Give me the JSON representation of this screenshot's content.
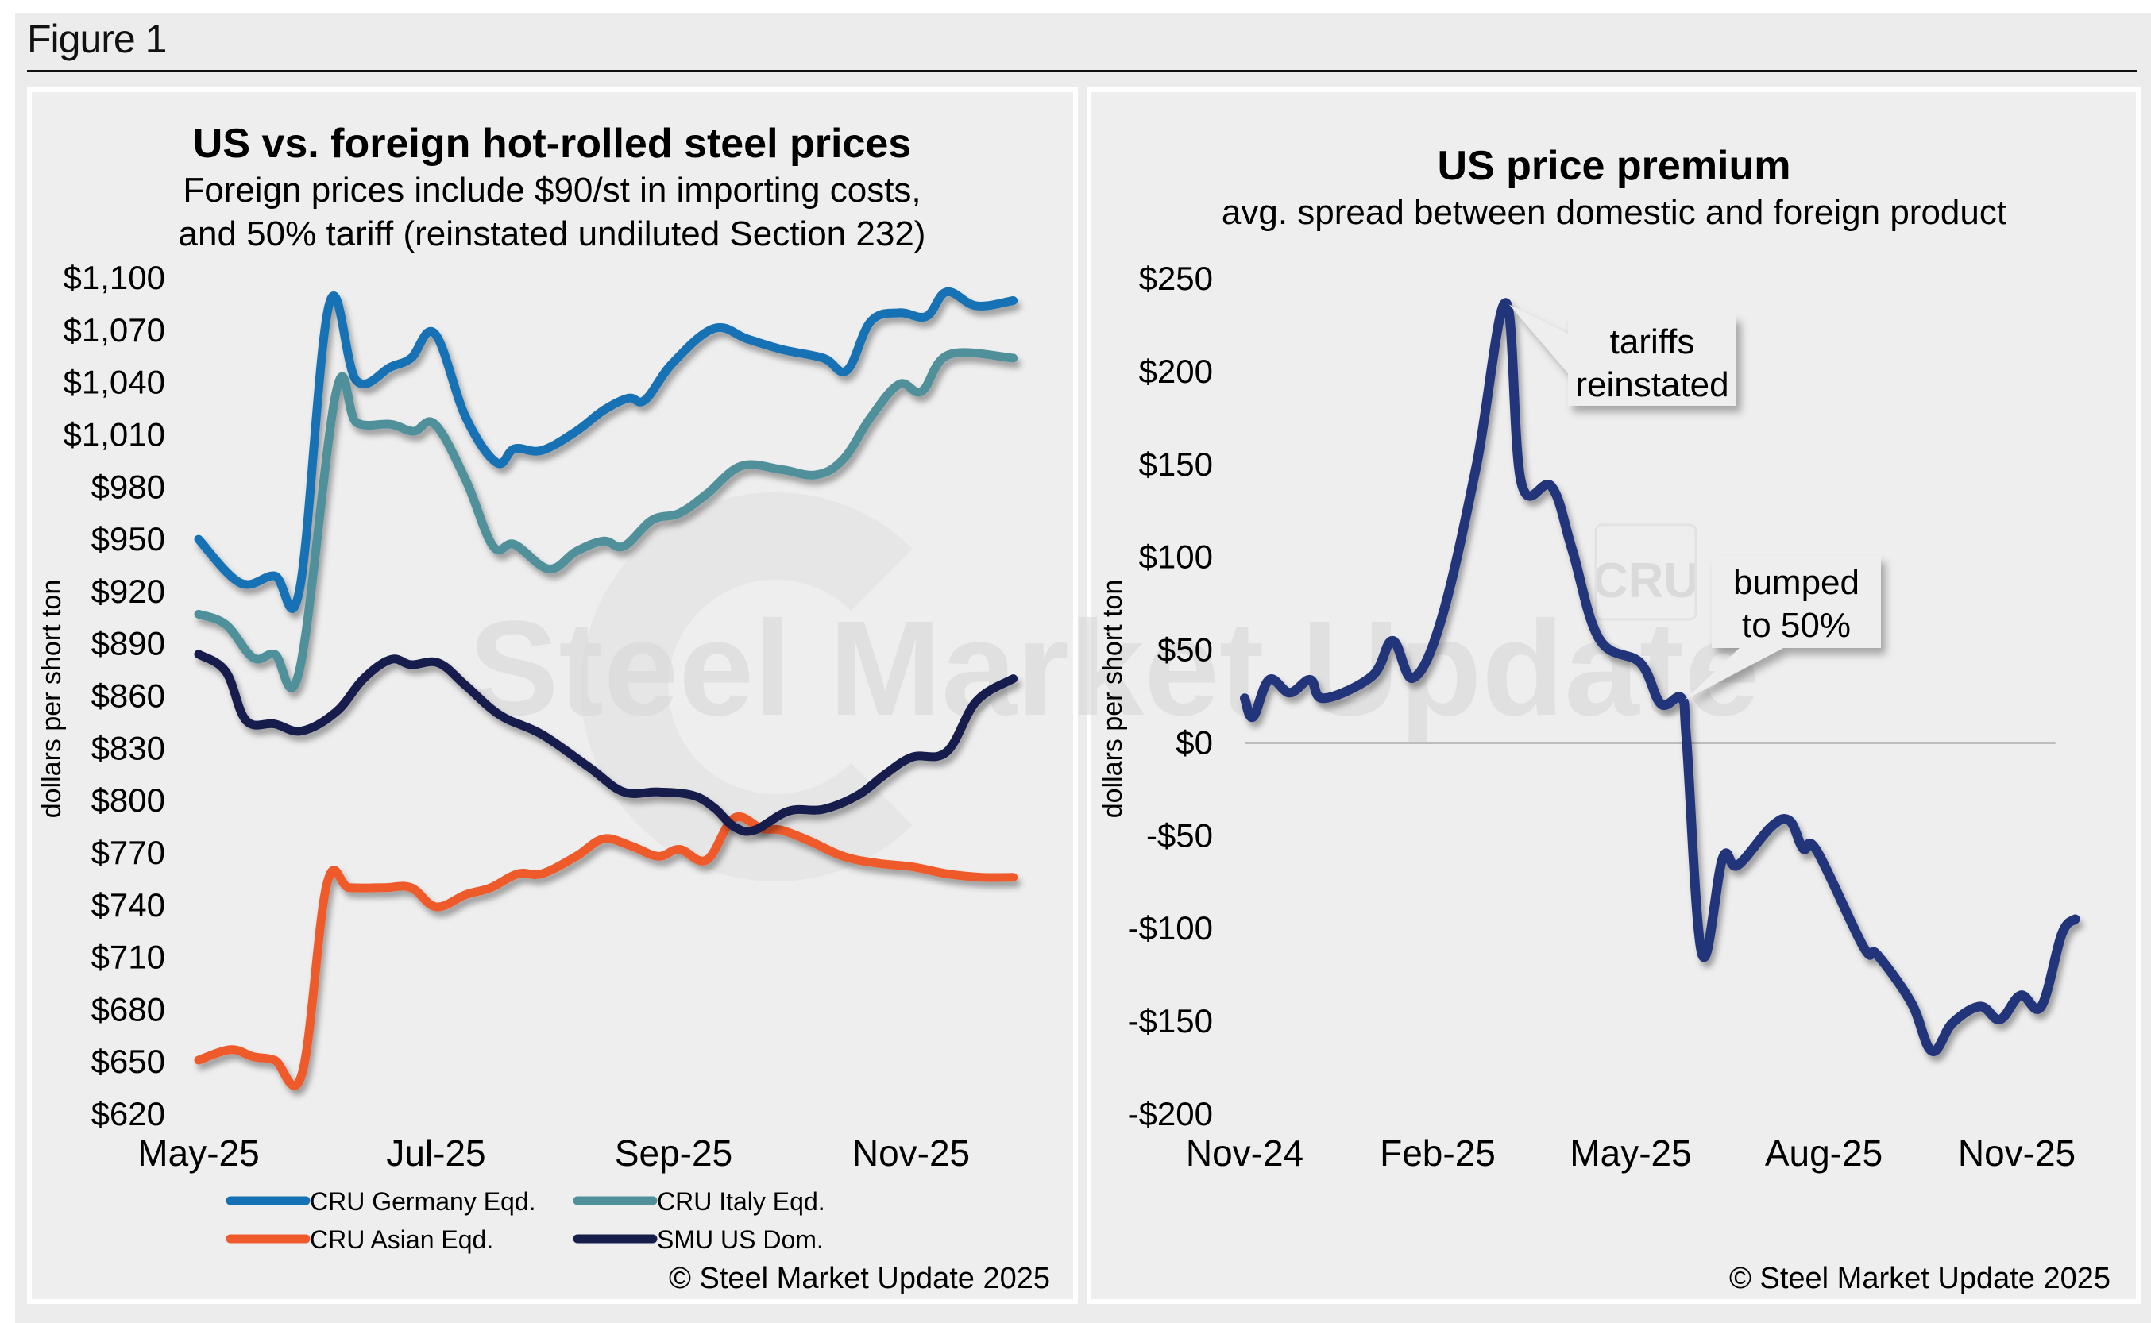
{
  "figure": {
    "label": "Figure 1"
  },
  "chart_data": [
    {
      "id": "left",
      "type": "line",
      "title": "US vs. foreign hot-rolled steel prices",
      "subtitle_lines": [
        "Foreign prices include $90/st in importing costs,",
        "and 50% tariff (reinstated undiluted Section 232)"
      ],
      "xlabel": "",
      "ylabel": "dollars per short ton",
      "ylim": [
        620,
        1100
      ],
      "yticks": [
        1100,
        1070,
        1040,
        1010,
        980,
        950,
        920,
        890,
        860,
        830,
        800,
        770,
        740,
        710,
        680,
        650,
        620
      ],
      "ytick_labels": [
        "$1,100",
        "$1,070",
        "$1,040",
        "$1,010",
        "$980",
        "$950",
        "$920",
        "$890",
        "$860",
        "$830",
        "$800",
        "$770",
        "$740",
        "$710",
        "$680",
        "$650",
        "$620"
      ],
      "x_unit": "months since May-25",
      "xticks": [
        0,
        2,
        4,
        6
      ],
      "xtick_labels": [
        "May-25",
        "Jul-25",
        "Sep-25",
        "Nov-25"
      ],
      "grid": false,
      "legend": "bottom",
      "series": [
        {
          "name": "CRU Germany Eqd.",
          "color": "#1472b4",
          "x": [
            0,
            0.35,
            0.64,
            0.85,
            1.1,
            1.33,
            1.62,
            1.79,
            1.99,
            2.25,
            2.51,
            2.66,
            2.89,
            3.18,
            3.41,
            3.62,
            3.76,
            3.99,
            4.34,
            4.62,
            4.91,
            5.26,
            5.46,
            5.66,
            5.9,
            6.13,
            6.3,
            6.55,
            6.86
          ],
          "y": [
            950,
            925,
            929,
            921,
            1085,
            1041,
            1049,
            1054,
            1068,
            1020,
            994,
            1002,
            1001,
            1012,
            1024,
            1031,
            1030,
            1051,
            1071,
            1065,
            1059,
            1054,
            1047,
            1075,
            1080,
            1078,
            1092,
            1084,
            1087
          ]
        },
        {
          "name": "CRU Italy Eqd.",
          "color": "#50909a",
          "x": [
            0,
            0.23,
            0.46,
            0.64,
            0.85,
            1.16,
            1.33,
            1.62,
            1.81,
            1.99,
            2.25,
            2.48,
            2.66,
            2.95,
            3.18,
            3.41,
            3.58,
            3.82,
            4.05,
            4.28,
            4.57,
            4.91,
            5.2,
            5.43,
            5.66,
            5.9,
            6.09,
            6.32,
            6.86
          ],
          "y": [
            907,
            901,
            882,
            884,
            875,
            1035,
            1017,
            1016,
            1012,
            1016,
            984,
            946,
            947,
            933,
            943,
            949,
            946,
            961,
            965,
            976,
            992,
            990,
            987,
            996,
            1020,
            1039,
            1035,
            1056,
            1054
          ]
        },
        {
          "name": "CRU Asian Eqd.",
          "color": "#ee5a2c",
          "x": [
            0,
            0.27,
            0.46,
            0.64,
            0.87,
            1.08,
            1.27,
            1.56,
            1.79,
            2.0,
            2.25,
            2.46,
            2.69,
            2.89,
            3.18,
            3.41,
            3.64,
            3.87,
            4.05,
            4.28,
            4.51,
            4.74,
            4.91,
            5.14,
            5.43,
            5.72,
            6.01,
            6.3,
            6.59,
            6.86
          ],
          "y": [
            651,
            657,
            653,
            651,
            643,
            752,
            750,
            750,
            750,
            739,
            746,
            750,
            758,
            758,
            768,
            778,
            774,
            768,
            772,
            766,
            790,
            784,
            783,
            777,
            768,
            764,
            762,
            758,
            756,
            756
          ]
        },
        {
          "name": "SMU US Dom.",
          "color": "#171d4b",
          "x": [
            0,
            0.23,
            0.4,
            0.64,
            0.87,
            1.16,
            1.39,
            1.62,
            1.79,
            2.02,
            2.25,
            2.54,
            2.89,
            3.29,
            3.58,
            3.87,
            4.16,
            4.34,
            4.51,
            4.68,
            4.97,
            5.26,
            5.55,
            5.78,
            6.01,
            6.3,
            6.55,
            6.86
          ],
          "y": [
            884,
            874,
            846,
            844,
            840,
            851,
            870,
            881,
            878,
            879,
            866,
            849,
            838,
            819,
            805,
            805,
            803,
            796,
            785,
            783,
            794,
            795,
            803,
            815,
            825,
            828,
            857,
            870
          ]
        }
      ],
      "watermark": "Steel Market Update",
      "copyright": "© Steel Market Update 2025"
    },
    {
      "id": "right",
      "type": "line",
      "title": "US price premium",
      "subtitle_lines": [
        "avg. spread between domestic and foreign product"
      ],
      "xlabel": "",
      "ylabel": "dollars per short ton",
      "ylim": [
        -200,
        250
      ],
      "yticks": [
        250,
        200,
        150,
        100,
        50,
        0,
        -50,
        -100,
        -150,
        -200
      ],
      "ytick_labels": [
        "$250",
        "$200",
        "$150",
        "$100",
        "$50",
        "$0",
        "-$50",
        "-$100",
        "-$150",
        "-$200"
      ],
      "x_unit": "months since Nov-24",
      "xticks": [
        0,
        3,
        6,
        9,
        12
      ],
      "xtick_labels": [
        "Nov-24",
        "Feb-25",
        "May-25",
        "Aug-25",
        "Nov-25"
      ],
      "grid": false,
      "zero_line": true,
      "legend": "none",
      "series": [
        {
          "name": "US price premium",
          "color": "#22347a",
          "x": [
            0,
            0.13,
            0.38,
            0.7,
            1.02,
            1.23,
            1.98,
            2.3,
            2.62,
            3.06,
            3.6,
            4.06,
            4.3,
            4.77,
            5.09,
            5.51,
            6.15,
            6.47,
            6.79,
            6.87,
            7.11,
            7.43,
            7.66,
            8.19,
            8.47,
            8.68,
            8.89,
            9.62,
            9.83,
            10.36,
            10.68,
            11.0,
            11.43,
            11.74,
            12.06,
            12.38,
            12.7,
            12.91
          ],
          "y": [
            24,
            14,
            34,
            27,
            34,
            24,
            36,
            55,
            35,
            67,
            149,
            237,
            140,
            138,
            104,
            56,
            43,
            21,
            24,
            0,
            -114,
            -62,
            -66,
            -45,
            -42,
            -57,
            -58,
            -110,
            -114,
            -140,
            -166,
            -151,
            -142,
            -149,
            -136,
            -142,
            -103,
            -95
          ]
        }
      ],
      "annotations": [
        {
          "text_lines": [
            "tariffs",
            "reinstated"
          ],
          "x": 4.06,
          "y": 237
        },
        {
          "text_lines": [
            "bumped",
            "to 50%"
          ],
          "x": 6.79,
          "y": 24
        }
      ],
      "watermarks": [
        "Steel Market Update",
        "CRU"
      ],
      "copyright": "© Steel Market Update 2025"
    }
  ]
}
